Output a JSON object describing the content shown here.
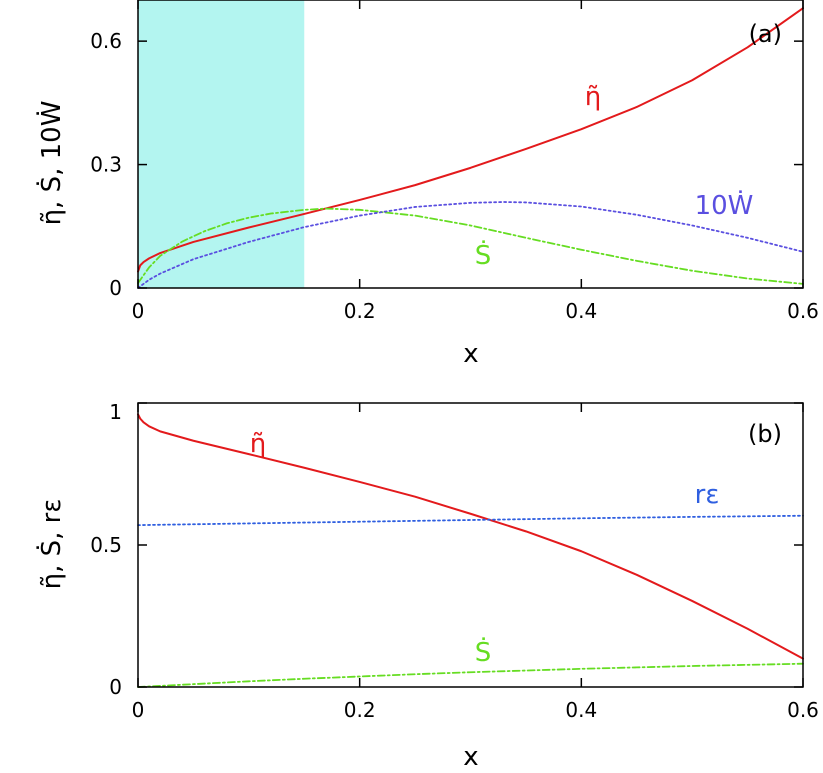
{
  "colors": {
    "eta": "#e31a1c",
    "sdot": "#66dd22",
    "wdot": "#5a4fe0",
    "reps": "#2f5fe0",
    "highlight": "#b3f5f0",
    "axis": "#000000"
  },
  "chart_data": [
    {
      "type": "line",
      "panel_label": "(a)",
      "xlabel": "x",
      "ylabel": "η̃, Ṡ, 10Ẇ",
      "xlim": [
        0,
        0.6
      ],
      "ylim": [
        0,
        0.7
      ],
      "xticks": [
        0,
        0.2,
        0.4,
        0.6
      ],
      "xtick_labels": [
        "0",
        "0.2",
        "0.4",
        "0.6"
      ],
      "yticks": [
        0,
        0.3,
        0.6
      ],
      "ytick_labels": [
        "0",
        "0.3",
        "0.6"
      ],
      "shaded_region": {
        "x0": 0,
        "x1": 0.15
      },
      "grid": false,
      "series": [
        {
          "key": "eta",
          "name": "η̃",
          "style": "solid",
          "x": [
            0,
            0.002,
            0.005,
            0.01,
            0.02,
            0.05,
            0.1,
            0.15,
            0.2,
            0.25,
            0.3,
            0.35,
            0.4,
            0.45,
            0.5,
            0.55,
            0.6
          ],
          "y": [
            0.04,
            0.055,
            0.063,
            0.072,
            0.085,
            0.112,
            0.147,
            0.18,
            0.214,
            0.25,
            0.292,
            0.338,
            0.386,
            0.44,
            0.505,
            0.585,
            0.68
          ]
        },
        {
          "key": "sdot",
          "name": "Ṡ",
          "style": "dashdot",
          "x": [
            0,
            0.01,
            0.02,
            0.04,
            0.06,
            0.08,
            0.1,
            0.12,
            0.15,
            0.17,
            0.2,
            0.25,
            0.3,
            0.35,
            0.4,
            0.45,
            0.5,
            0.55,
            0.6
          ],
          "y": [
            0.012,
            0.05,
            0.078,
            0.113,
            0.138,
            0.157,
            0.171,
            0.181,
            0.19,
            0.193,
            0.19,
            0.176,
            0.152,
            0.122,
            0.093,
            0.066,
            0.042,
            0.023,
            0.01
          ]
        },
        {
          "key": "wdot",
          "name": "10Ẇ",
          "style": "dotted",
          "x": [
            0,
            0.01,
            0.02,
            0.05,
            0.1,
            0.15,
            0.2,
            0.25,
            0.3,
            0.33,
            0.35,
            0.4,
            0.45,
            0.5,
            0.55,
            0.6
          ],
          "y": [
            0,
            0.02,
            0.035,
            0.07,
            0.112,
            0.148,
            0.176,
            0.197,
            0.207,
            0.209,
            0.208,
            0.198,
            0.178,
            0.152,
            0.122,
            0.088
          ]
        }
      ]
    },
    {
      "type": "line",
      "panel_label": "(b)",
      "xlabel": "x",
      "ylabel": "η̃, Ṡ, rε",
      "xlim": [
        0,
        0.6
      ],
      "ylim": [
        0,
        1
      ],
      "xticks": [
        0,
        0.2,
        0.4,
        0.6
      ],
      "xtick_labels": [
        "0",
        "0.2",
        "0.4",
        "0.6"
      ],
      "yticks": [
        0,
        0.5,
        1
      ],
      "ytick_labels": [
        "0",
        "0.5",
        "1"
      ],
      "grid": false,
      "series": [
        {
          "key": "eta",
          "name": "η̃",
          "style": "solid",
          "x": [
            0,
            0.002,
            0.005,
            0.01,
            0.02,
            0.05,
            0.1,
            0.15,
            0.2,
            0.25,
            0.3,
            0.35,
            0.4,
            0.45,
            0.5,
            0.55,
            0.6
          ],
          "y": [
            0.96,
            0.945,
            0.932,
            0.918,
            0.9,
            0.867,
            0.82,
            0.772,
            0.722,
            0.67,
            0.61,
            0.548,
            0.478,
            0.395,
            0.303,
            0.205,
            0.1
          ]
        },
        {
          "key": "sdot",
          "name": "Ṡ",
          "style": "dashdot",
          "x": [
            0,
            0.05,
            0.1,
            0.15,
            0.2,
            0.25,
            0.3,
            0.35,
            0.4,
            0.45,
            0.5,
            0.55,
            0.6
          ],
          "y": [
            0,
            0.01,
            0.02,
            0.029,
            0.037,
            0.045,
            0.052,
            0.058,
            0.064,
            0.069,
            0.074,
            0.078,
            0.082
          ]
        },
        {
          "key": "reps",
          "name": "rε",
          "style": "dotted",
          "x": [
            0,
            0.1,
            0.2,
            0.3,
            0.4,
            0.5,
            0.6
          ],
          "y": [
            0.57,
            0.576,
            0.582,
            0.588,
            0.594,
            0.599,
            0.603
          ]
        }
      ]
    }
  ]
}
